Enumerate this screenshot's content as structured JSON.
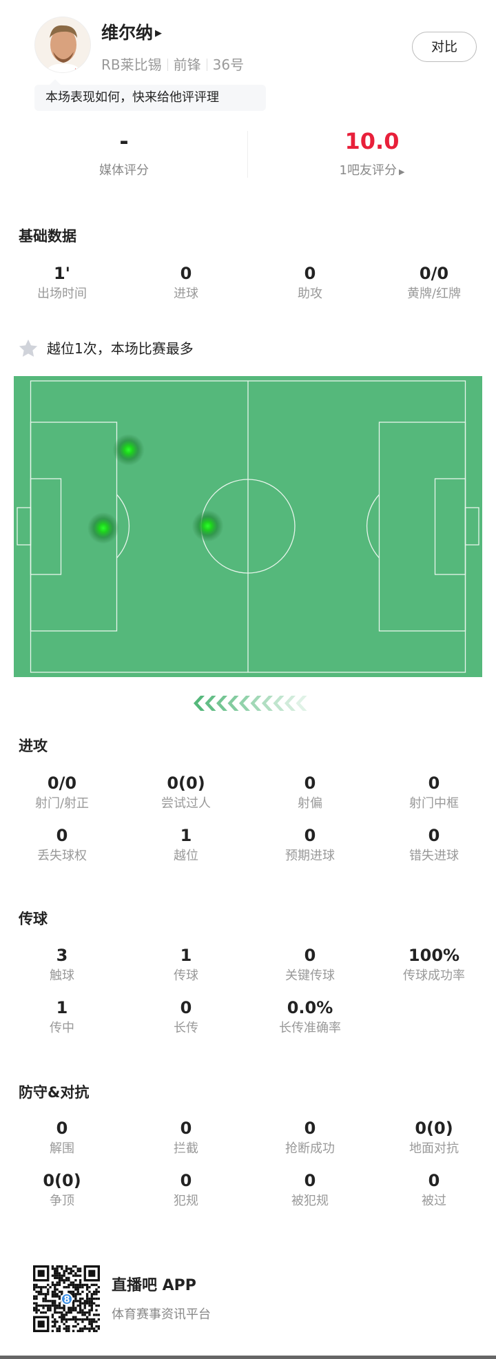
{
  "player": {
    "name": "维尔纳",
    "team": "RB莱比锡",
    "position": "前锋",
    "number": "36号",
    "compare_label": "对比",
    "tip": "本场表现如何，快来给他评评理"
  },
  "ratings": {
    "media_value": "-",
    "media_label": "媒体评分",
    "fan_value": "10.0",
    "fan_label": "1吧友评分",
    "fan_color": "#e8203a"
  },
  "basic": {
    "title": "基础数据",
    "items": [
      {
        "v": "1'",
        "l": "出场时间"
      },
      {
        "v": "0",
        "l": "进球"
      },
      {
        "v": "0",
        "l": "助攻"
      },
      {
        "v": "0/0",
        "l": "黄牌/红牌"
      }
    ]
  },
  "highlight": {
    "icon": "star-icon",
    "text": "越位1次，本场比赛最多"
  },
  "heatmap": {
    "pitch_color": "#55b87b",
    "points": [
      {
        "x": 0.245,
        "y": 0.245
      },
      {
        "x": 0.191,
        "y": 0.505
      },
      {
        "x": 0.414,
        "y": 0.498
      }
    ]
  },
  "attack": {
    "title": "进攻",
    "items": [
      {
        "v": "0/0",
        "l": "射门/射正"
      },
      {
        "v": "0(0)",
        "l": "尝试过人"
      },
      {
        "v": "0",
        "l": "射偏"
      },
      {
        "v": "0",
        "l": "射门中框"
      },
      {
        "v": "0",
        "l": "丢失球权"
      },
      {
        "v": "1",
        "l": "越位"
      },
      {
        "v": "0",
        "l": "预期进球"
      },
      {
        "v": "0",
        "l": "错失进球"
      }
    ]
  },
  "passing": {
    "title": "传球",
    "items": [
      {
        "v": "3",
        "l": "触球"
      },
      {
        "v": "1",
        "l": "传球"
      },
      {
        "v": "0",
        "l": "关键传球"
      },
      {
        "v": "100%",
        "l": "传球成功率"
      },
      {
        "v": "1",
        "l": "传中"
      },
      {
        "v": "0",
        "l": "长传"
      },
      {
        "v": "0.0%",
        "l": "长传准确率"
      }
    ]
  },
  "defense": {
    "title": "防守&对抗",
    "items": [
      {
        "v": "0",
        "l": "解围"
      },
      {
        "v": "0",
        "l": "拦截"
      },
      {
        "v": "0",
        "l": "抢断成功"
      },
      {
        "v": "0(0)",
        "l": "地面对抗"
      },
      {
        "v": "0(0)",
        "l": "争顶"
      },
      {
        "v": "0",
        "l": "犯规"
      },
      {
        "v": "0",
        "l": "被犯规"
      },
      {
        "v": "0",
        "l": "被过"
      }
    ]
  },
  "footer": {
    "app_name": "直播吧 APP",
    "slogan": "体育赛事资讯平台",
    "qr_badge": "8"
  }
}
